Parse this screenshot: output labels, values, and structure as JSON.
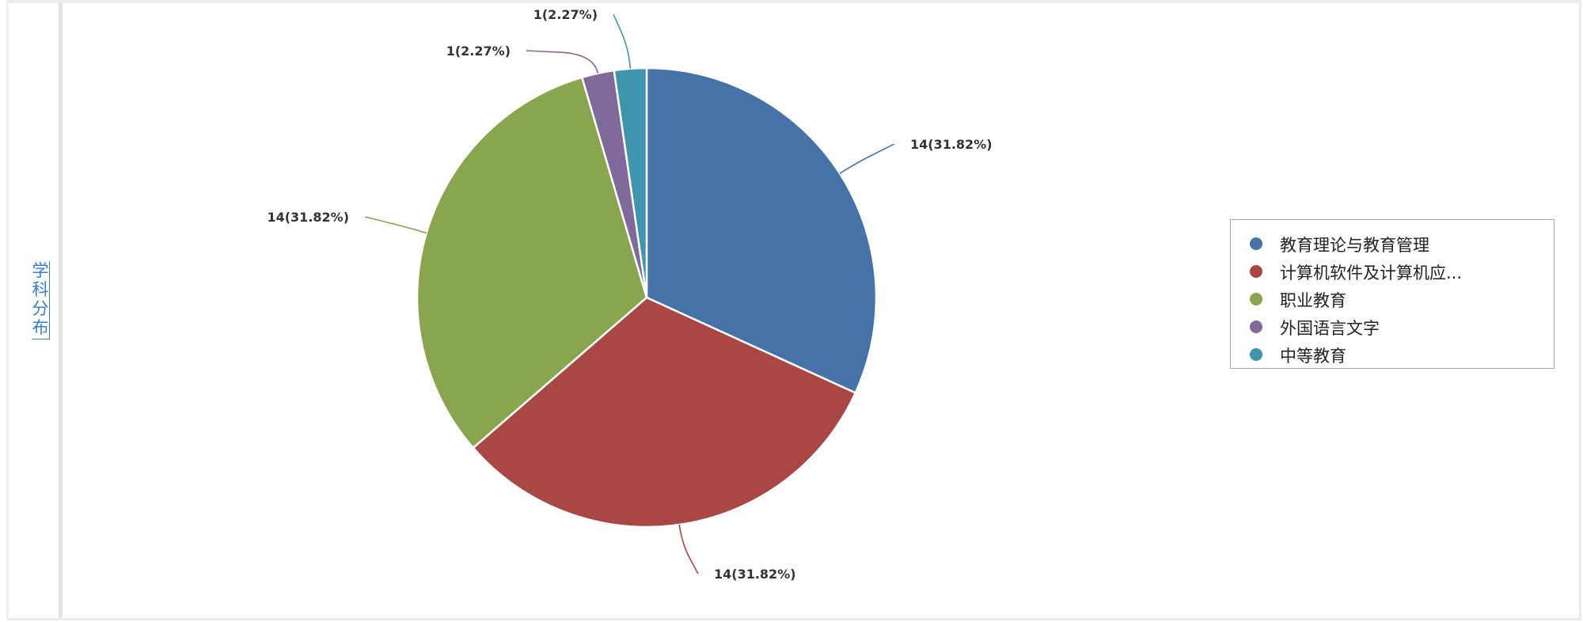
{
  "sidebar": {
    "label_chars": [
      "学",
      "科",
      "分",
      "布"
    ]
  },
  "chart_data": {
    "type": "pie",
    "categories": [
      "教育理论与教育管理",
      "计算机软件及计算机应...",
      "职业教育",
      "外国语言文字",
      "中等教育"
    ],
    "values": [
      14,
      14,
      14,
      1,
      1
    ],
    "labels": [
      "14(31.82%)",
      "14(31.82%)",
      "14(31.82%)",
      "1(2.27%)",
      "1(2.27%)"
    ],
    "colors": [
      "#4572a7",
      "#aa4643",
      "#89a54e",
      "#80699b",
      "#3d96ae"
    ],
    "legend_position": "right"
  }
}
